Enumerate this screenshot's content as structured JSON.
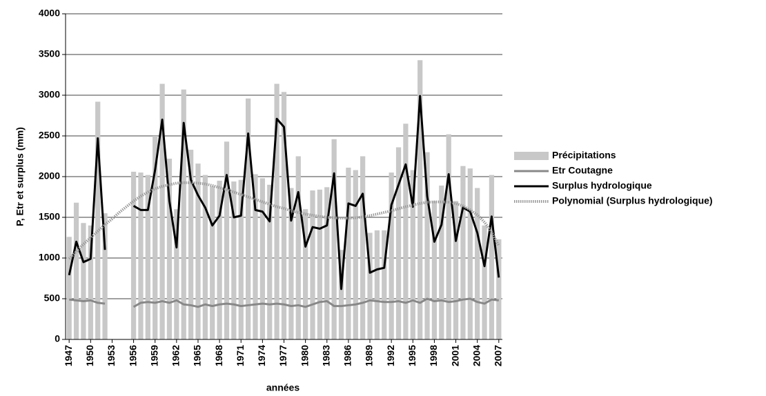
{
  "chart_data": {
    "type": "bar",
    "x_label": "années",
    "y_label": "P, Etr et surplus (mm)",
    "x": [
      1947,
      1948,
      1949,
      1950,
      1951,
      1952,
      1953,
      1954,
      1955,
      1956,
      1957,
      1958,
      1959,
      1960,
      1961,
      1962,
      1963,
      1964,
      1965,
      1966,
      1967,
      1968,
      1969,
      1970,
      1971,
      1972,
      1973,
      1974,
      1975,
      1976,
      1977,
      1978,
      1979,
      1980,
      1981,
      1982,
      1983,
      1984,
      1985,
      1986,
      1987,
      1988,
      1989,
      1990,
      1991,
      1992,
      1993,
      1994,
      1995,
      1996,
      1997,
      1998,
      1999,
      2000,
      2001,
      2002,
      2003,
      2004,
      2005,
      2006,
      2007
    ],
    "xlim": [
      1946.5,
      2007.5
    ],
    "xticks": [
      1947,
      1950,
      1953,
      1956,
      1959,
      1962,
      1965,
      1968,
      1971,
      1974,
      1977,
      1980,
      1983,
      1986,
      1989,
      1992,
      1995,
      1998,
      2001,
      2004,
      2007
    ],
    "ylim": [
      0,
      4000
    ],
    "yticks": [
      0,
      500,
      1000,
      1500,
      2000,
      2500,
      3000,
      3500,
      4000
    ],
    "grid": true,
    "series": [
      {
        "name": "Précipitations",
        "color": "#c8c8c8",
        "kind": "bar",
        "values": [
          1260,
          1680,
          1430,
          1400,
          2920,
          1550,
          null,
          null,
          null,
          2060,
          2050,
          2020,
          2500,
          3140,
          2220,
          1600,
          3070,
          2330,
          2160,
          2020,
          1880,
          1950,
          2430,
          1940,
          1960,
          2960,
          2030,
          1980,
          1900,
          3140,
          3040,
          1860,
          2250,
          1600,
          1830,
          1840,
          1870,
          2460,
          1100,
          2110,
          2080,
          2250,
          1310,
          1340,
          1340,
          2050,
          2360,
          2650,
          2080,
          3430,
          2300,
          1700,
          1890,
          2520,
          1700,
          2130,
          2100,
          1860,
          1400,
          2020,
          1230
        ]
      },
      {
        "name": "Etr Coutagne",
        "color": "#888888",
        "kind": "line",
        "width": 3,
        "values": [
          490,
          480,
          470,
          480,
          450,
          440,
          null,
          null,
          null,
          400,
          450,
          460,
          450,
          470,
          450,
          480,
          430,
          420,
          400,
          430,
          410,
          430,
          440,
          430,
          410,
          420,
          430,
          440,
          430,
          440,
          430,
          410,
          420,
          400,
          430,
          460,
          470,
          410,
          410,
          420,
          430,
          450,
          480,
          470,
          460,
          460,
          470,
          450,
          480,
          450,
          500,
          470,
          480,
          460,
          470,
          490,
          500,
          460,
          440,
          490,
          480
        ]
      },
      {
        "name": "Surplus hydrologique",
        "color": "#000000",
        "kind": "line",
        "width": 3,
        "values": [
          790,
          1200,
          950,
          990,
          2470,
          1100,
          null,
          null,
          null,
          1640,
          1590,
          1590,
          2080,
          2700,
          1700,
          1130,
          2660,
          1960,
          1770,
          1620,
          1400,
          1520,
          2020,
          1500,
          1520,
          2530,
          1590,
          1570,
          1450,
          2710,
          2610,
          1460,
          1810,
          1140,
          1380,
          1360,
          1400,
          2040,
          620,
          1670,
          1640,
          1790,
          820,
          860,
          880,
          1650,
          1900,
          2150,
          1630,
          2990,
          1760,
          1200,
          1410,
          2030,
          1210,
          1620,
          1570,
          1310,
          900,
          1510,
          760
        ]
      },
      {
        "name": "Polynomial (Surplus hydrologique)",
        "color": "#999999",
        "kind": "line",
        "width": 4,
        "dotted": true,
        "values": [
          990,
          1080,
          1170,
          1250,
          1330,
          1410,
          1480,
          1560,
          1630,
          1700,
          1760,
          1810,
          1850,
          1880,
          1900,
          1920,
          1925,
          1925,
          1920,
          1910,
          1890,
          1865,
          1840,
          1810,
          1780,
          1750,
          1720,
          1690,
          1660,
          1630,
          1610,
          1580,
          1560,
          1540,
          1525,
          1510,
          1500,
          1495,
          1490,
          1490,
          1495,
          1505,
          1520,
          1540,
          1560,
          1580,
          1605,
          1630,
          1650,
          1670,
          1685,
          1690,
          1690,
          1685,
          1670,
          1640,
          1590,
          1530,
          1440,
          1320,
          1150
        ]
      }
    ]
  }
}
